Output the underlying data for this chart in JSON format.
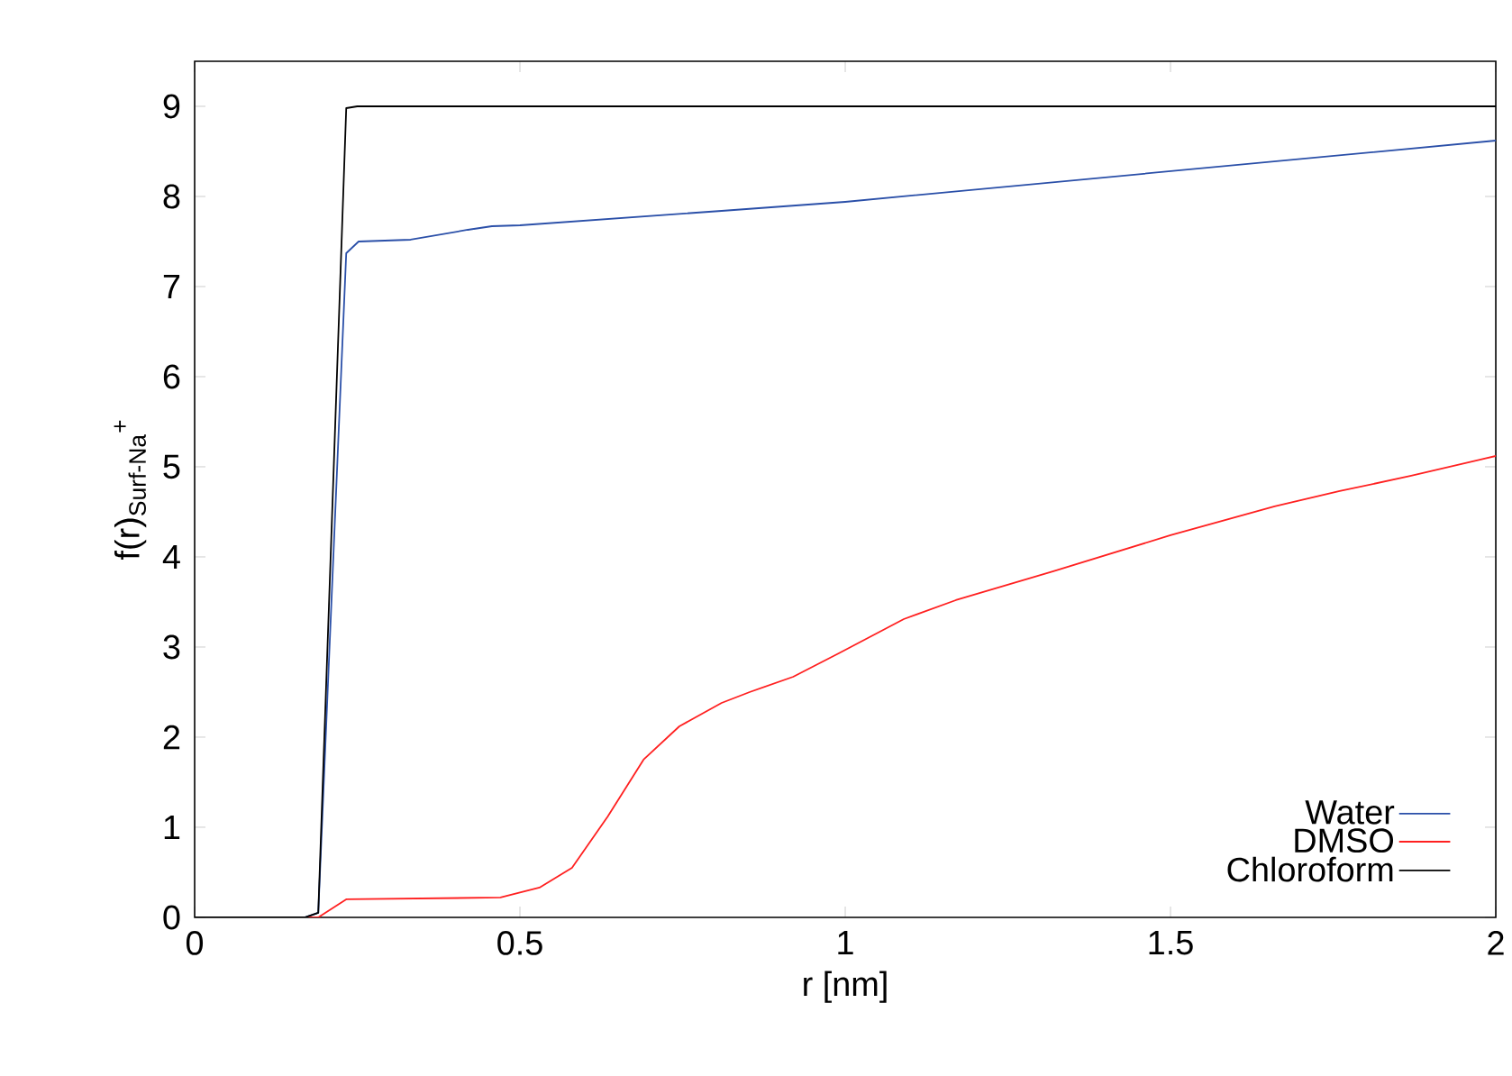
{
  "chart_data": {
    "type": "line",
    "xlabel": "r [nm]",
    "ylabel": "f(r)$_{Surf-Na}$$^{+}$",
    "xlim": [
      0,
      2
    ],
    "ylim": [
      0,
      9.5
    ],
    "xticks": [
      0,
      0.5,
      1,
      1.5,
      2
    ],
    "yticks": [
      0,
      1,
      2,
      3,
      4,
      5,
      6,
      7,
      8,
      9
    ],
    "grid": false,
    "legend": "bottom right",
    "marker": "none",
    "line_style": "solid",
    "series": [
      {
        "name": "Water",
        "color": "#2a4fa8",
        "x": [
          0,
          0.17,
          0.19,
          0.233,
          0.252,
          0.332,
          0.42,
          0.457,
          0.5,
          0.81,
          1.0,
          1.5,
          2.0
        ],
        "values": [
          0,
          0,
          0.05,
          7.37,
          7.5,
          7.52,
          7.63,
          7.67,
          7.68,
          7.84,
          7.94,
          8.28,
          8.62
        ]
      },
      {
        "name": "DMSO",
        "color": "#ff2020",
        "x": [
          0,
          0.17,
          0.19,
          0.233,
          0.47,
          0.53,
          0.58,
          0.635,
          0.69,
          0.745,
          0.81,
          0.853,
          0.92,
          0.99,
          1.09,
          1.17,
          1.32,
          1.5,
          1.66,
          1.76,
          1.87,
          2.0
        ],
        "values": [
          0,
          0,
          0,
          0.2,
          0.22,
          0.33,
          0.55,
          1.12,
          1.75,
          2.12,
          2.38,
          2.5,
          2.67,
          2.93,
          3.31,
          3.52,
          3.84,
          4.24,
          4.56,
          4.73,
          4.9,
          5.12
        ]
      },
      {
        "name": "Chloroform",
        "color": "#000000",
        "x": [
          0,
          0.17,
          0.19,
          0.233,
          0.25,
          2.0
        ],
        "values": [
          0,
          0,
          0.05,
          8.98,
          9,
          9
        ]
      }
    ]
  }
}
